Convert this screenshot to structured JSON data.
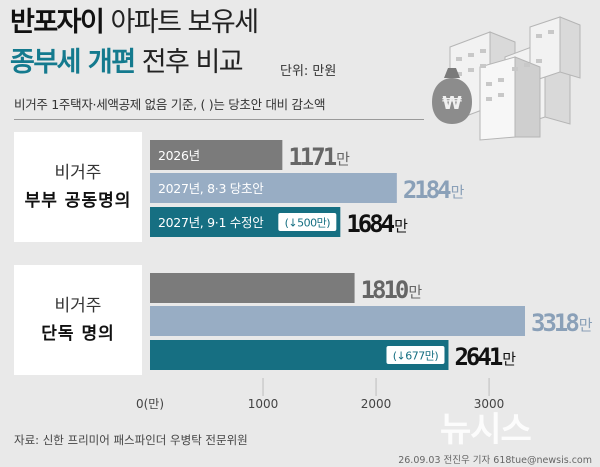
{
  "title": {
    "line1_bold": "반포자이",
    "line1_rest": " 아파트 보유세",
    "line2_bold": "종부세 개편",
    "line2_rest": " 전후 비교",
    "unit": "단위: 만원"
  },
  "note": "비거주 1주택자·세액공제 없음 기준, ( )는 당초안 대비 감소액",
  "groups": [
    {
      "line1": "비거주",
      "line2": "부부 공동명의"
    },
    {
      "line1": "비거주",
      "line2": "단독 명의"
    }
  ],
  "chart_data": {
    "type": "bar",
    "orientation": "horizontal",
    "xlim": [
      0,
      3300
    ],
    "x_ticks": [
      {
        "value": 0,
        "label": "0(만)"
      },
      {
        "value": 1000,
        "label": "1000"
      },
      {
        "value": 2000,
        "label": "2000"
      },
      {
        "value": 3000,
        "label": "3000"
      }
    ],
    "bars": [
      {
        "group": 0,
        "label": "2026년",
        "value": 1171,
        "value_label": "1171",
        "unit": "만",
        "color": "#7b7b7b",
        "text_color": "#666666",
        "delta": ""
      },
      {
        "group": 0,
        "label": "2027년, 8·3 당초안",
        "value": 2184,
        "value_label": "2184",
        "unit": "만",
        "color": "#98adc4",
        "text_color": "#8aa0b8",
        "delta": ""
      },
      {
        "group": 0,
        "label": "2027년, 9·1 수정안",
        "value": 1684,
        "value_label": "1684",
        "unit": "만",
        "color": "#166f82",
        "text_color": "#111111",
        "delta": "(↓500만)"
      },
      {
        "group": 1,
        "label": "",
        "value": 1810,
        "value_label": "1810",
        "unit": "만",
        "color": "#7b7b7b",
        "text_color": "#666666",
        "delta": ""
      },
      {
        "group": 1,
        "label": "",
        "value": 3318,
        "value_label": "3318",
        "unit": "만",
        "color": "#98adc4",
        "text_color": "#8aa0b8",
        "delta": ""
      },
      {
        "group": 1,
        "label": "",
        "value": 2641,
        "value_label": "2641",
        "unit": "만",
        "color": "#166f82",
        "text_color": "#111111",
        "delta": "(↓677만)"
      }
    ]
  },
  "source": "자료: 신한 프리미어 패스파인더 우병탁 전문위원",
  "credit": "26.09.03 전진우 기자  618tue@newsis.com",
  "watermark": "뉴시스"
}
